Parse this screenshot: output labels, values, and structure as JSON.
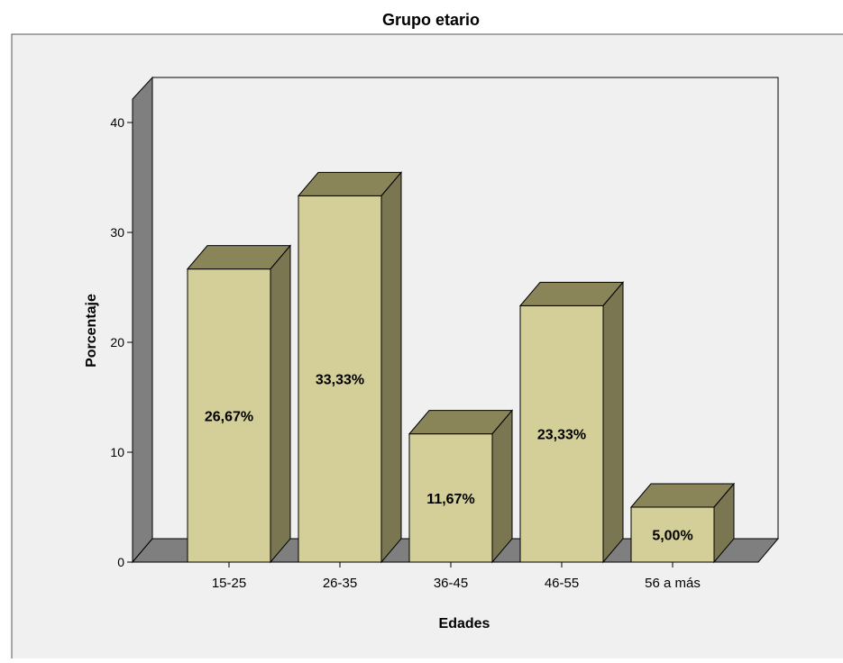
{
  "chart_data": {
    "type": "bar",
    "title": "Grupo etario",
    "xlabel": "Edades",
    "ylabel": "Porcentaje",
    "categories": [
      "15-25",
      "26-35",
      "36-45",
      "46-55",
      "56 a más"
    ],
    "values": [
      26.67,
      33.33,
      11.67,
      23.33,
      5.0
    ],
    "value_labels": [
      "26,67%",
      "33,33%",
      "11,67%",
      "23,33%",
      "5,00%"
    ],
    "ylim": [
      0,
      40
    ],
    "yticks": [
      0,
      10,
      20,
      30,
      40
    ],
    "style": "3d",
    "grid": false,
    "legend": "none",
    "colors": {
      "bar_front": "#d4cf98",
      "bar_top": "#8a8459",
      "bar_side": "#7b7652",
      "wall": "#7f7f7f",
      "panel_bg": "#f0f0f0",
      "outline": "#000000"
    }
  }
}
